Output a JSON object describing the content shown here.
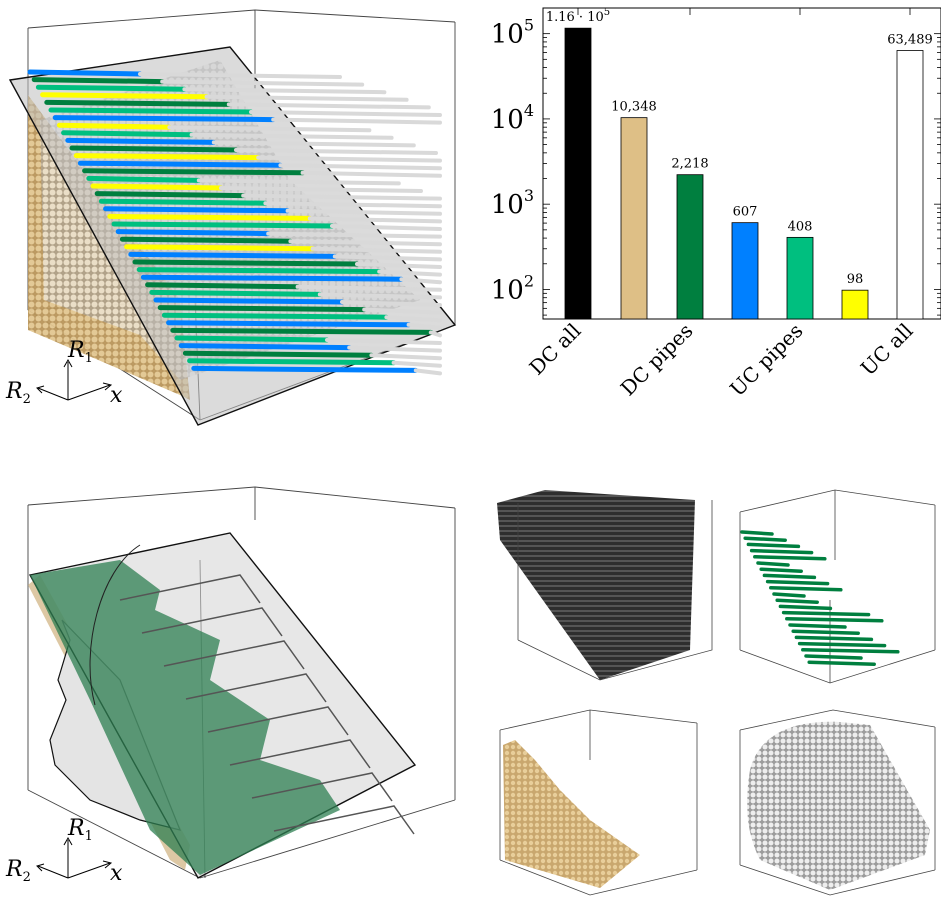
{
  "panels": {
    "top_left": {
      "axis_labels": {
        "r1": "R",
        "r1_sub": "1",
        "r2": "R",
        "r2_sub": "2",
        "x": "x"
      }
    },
    "bottom_left": {
      "axis_labels": {
        "r1": "R",
        "r1_sub": "1",
        "r2": "R",
        "r2_sub": "2",
        "x": "x"
      }
    }
  },
  "colors": {
    "dc_all": "#000000",
    "dc_pipes": "#DEBF86",
    "dark_green": "#007F3F",
    "blue": "#0080FF",
    "green": "#00BF7F",
    "yellow": "#FFFF00",
    "uc_all": "#FFFFFF",
    "grey_pipe": "#D9D9D9",
    "plane": "#BEBEBE"
  },
  "chart_data": {
    "type": "bar",
    "yscale": "log",
    "ylim": [
      45,
      200000
    ],
    "yticks": [
      {
        "value": 100,
        "base": "10",
        "exp": "2"
      },
      {
        "value": 1000,
        "base": "10",
        "exp": "3"
      },
      {
        "value": 10000,
        "base": "10",
        "exp": "4"
      },
      {
        "value": 100000,
        "base": "10",
        "exp": "5"
      }
    ],
    "xtick_labels": [
      "DC all",
      "DC pipes",
      "UC pipes",
      "UC all"
    ],
    "bars": [
      {
        "value": 116000,
        "label": "1.16 · 10",
        "label_exp": "5",
        "color": "#000000"
      },
      {
        "value": 10348,
        "label": "10,348",
        "color": "#DEBF86"
      },
      {
        "value": 2218,
        "label": "2,218",
        "color": "#007F3F"
      },
      {
        "value": 607,
        "label": "607",
        "color": "#0080FF"
      },
      {
        "value": 408,
        "label": "408",
        "color": "#00BF7F"
      },
      {
        "value": 98,
        "label": "98",
        "color": "#FFFF00"
      },
      {
        "value": 63489,
        "label": "63,489",
        "color": "#FFFFFF"
      }
    ]
  }
}
